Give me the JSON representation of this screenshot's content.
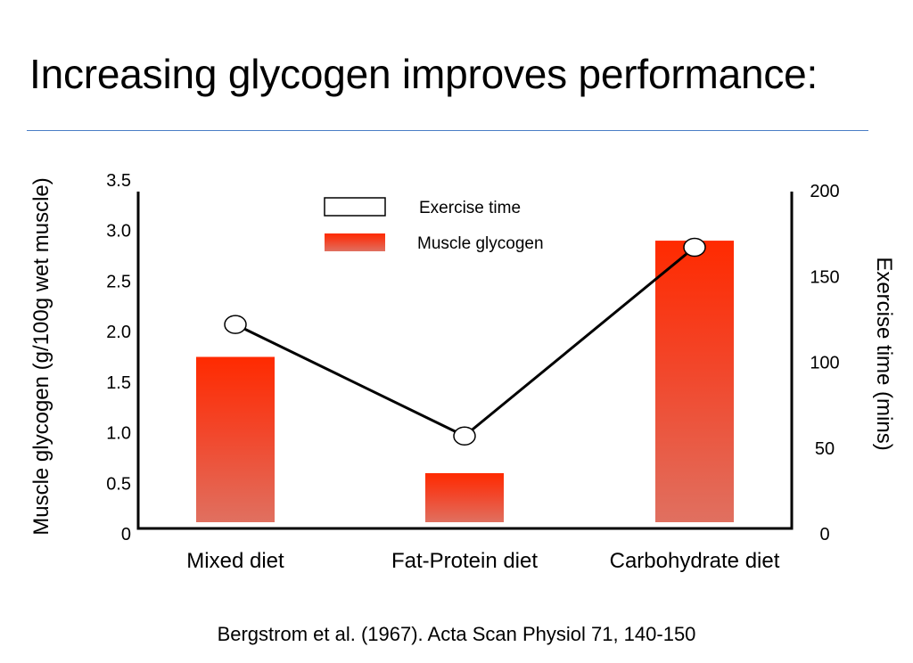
{
  "title": "Increasing glycogen improves performance:",
  "citation": "Bergstrom et al. (1967). Acta Scan Physiol 71, 140-150",
  "chart_data": {
    "type": "bar",
    "categories": [
      "Mixed diet",
      "Fat-Protein diet",
      "Carbohydrate diet"
    ],
    "series": [
      {
        "name": "Muscle glycogen",
        "type": "bar",
        "axis": "left",
        "values": [
          1.75,
          0.6,
          2.9
        ],
        "color": "#ff2a00",
        "color_bottom": "#e07060"
      },
      {
        "name": "Exercise time",
        "type": "line",
        "axis": "right",
        "values": [
          122,
          57,
          167
        ],
        "color": "#000000"
      }
    ],
    "y_left": {
      "label": "Muscle glycogen (g/100g wet muscle)",
      "range": [
        0,
        3.5
      ],
      "ticks": [
        {
          "value": 0,
          "label": "0"
        },
        {
          "value": 0.5,
          "label": "0.5"
        },
        {
          "value": 1.0,
          "label": "1.0"
        },
        {
          "value": 1.5,
          "label": "1.5"
        },
        {
          "value": 2.0,
          "label": "2.0"
        },
        {
          "value": 2.5,
          "label": "2.5"
        },
        {
          "value": 3.0,
          "label": "3.0"
        },
        {
          "value": 3.5,
          "label": "3.5"
        }
      ]
    },
    "y_right": {
      "label": "Exercise time (mins)",
      "range": [
        0,
        200
      ],
      "ticks": [
        {
          "value": 0,
          "label": "0"
        },
        {
          "value": 50,
          "label": "50"
        },
        {
          "value": 100,
          "label": "100"
        },
        {
          "value": 150,
          "label": "150"
        },
        {
          "value": 200,
          "label": "200"
        }
      ]
    },
    "legend": {
      "placement": "top-center",
      "items": [
        {
          "label": "Exercise time",
          "swatch": "outline-box"
        },
        {
          "label": "Muscle glycogen",
          "swatch": "red-gradient-box"
        }
      ]
    },
    "grid": false
  }
}
